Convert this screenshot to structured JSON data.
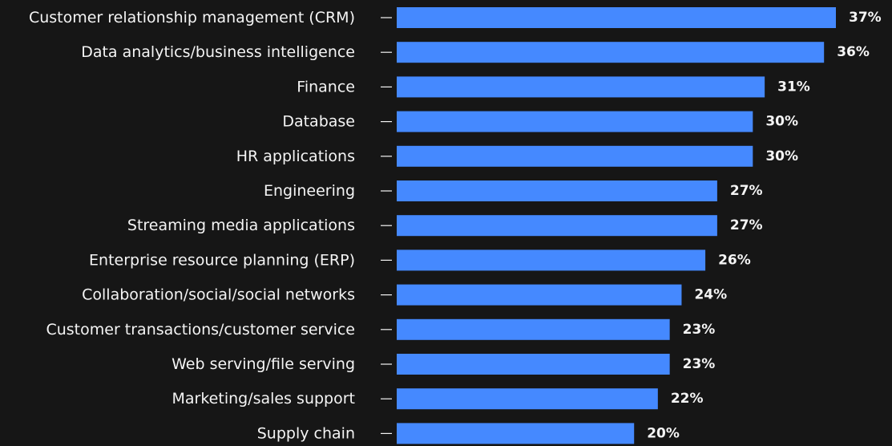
{
  "chart_data": {
    "type": "bar",
    "orientation": "horizontal",
    "categories": [
      "Customer relationship management (CRM)",
      "Data analytics/business intelligence",
      "Finance",
      "Database",
      "HR applications",
      "Engineering",
      "Streaming media applications",
      "Enterprise resource planning (ERP)",
      "Collaboration/social/social networks",
      "Customer transactions/customer service",
      "Web serving/file serving",
      "Marketing/sales support",
      "Supply chain"
    ],
    "values": [
      37,
      36,
      31,
      30,
      30,
      27,
      27,
      26,
      24,
      23,
      23,
      22,
      20
    ],
    "value_labels": [
      "37%",
      "36%",
      "31%",
      "30%",
      "30%",
      "27%",
      "27%",
      "26%",
      "24%",
      "23%",
      "23%",
      "22%",
      "20%"
    ],
    "color": "#4589ff"
  }
}
